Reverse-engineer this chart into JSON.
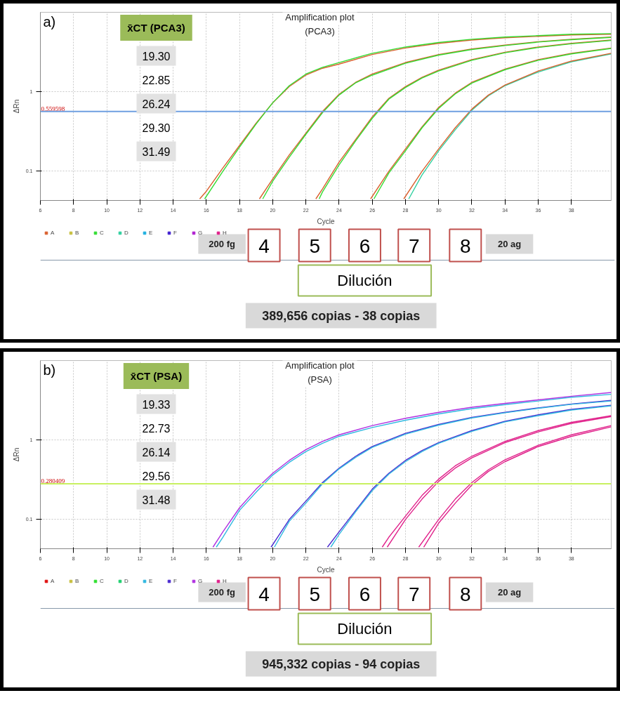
{
  "chart_data": [
    {
      "type": "line",
      "title": "Amplification plot",
      "subtitle": "(PCA3)",
      "xlabel": "Cycle",
      "ylabel": "ΔRn",
      "xlim": [
        6,
        40.4
      ],
      "ylim": [
        0.043,
        9.8
      ],
      "xticks": [
        6,
        8,
        10,
        12,
        14,
        16,
        18,
        20,
        22,
        24,
        26,
        28,
        30,
        32,
        34,
        36,
        38
      ],
      "yticks": [
        0.1,
        1
      ],
      "log": "y",
      "grid": true,
      "legend": "bottom",
      "ref_lines": [
        {
          "axis": "y",
          "value": 0.559598,
          "label": "0.559598",
          "color": "#6f9fe0"
        }
      ],
      "annotations": [
        "a)",
        "x̄CT (PCA3)",
        "19.30",
        "22.85",
        "26.24",
        "29.30",
        "31.49",
        "200 fg",
        "4",
        "5",
        "6",
        "7",
        "8",
        "20 ag",
        "Dilución",
        "389,656 copias - 38 copias"
      ],
      "series": [
        {
          "name": "A",
          "color": "#d9602e",
          "x": [
            15.6,
            16,
            17,
            18,
            19,
            20,
            21,
            22,
            23,
            24,
            26,
            28,
            30,
            32,
            34,
            36,
            38,
            40.4
          ],
          "values": [
            0.045,
            0.056,
            0.11,
            0.21,
            0.4,
            0.72,
            1.15,
            1.6,
            1.95,
            2.2,
            2.9,
            3.5,
            4.0,
            4.4,
            4.7,
            4.9,
            5.1,
            5.2
          ]
        },
        {
          "name": "B",
          "color": "#c8c040"
        },
        {
          "name": "C",
          "color": "#33dd33",
          "x": [
            15.9,
            17,
            18,
            19,
            20,
            21,
            22,
            23,
            24,
            26,
            28,
            30,
            32,
            34,
            36,
            38,
            40.4
          ],
          "values": [
            0.045,
            0.1,
            0.2,
            0.39,
            0.72,
            1.18,
            1.65,
            2.0,
            2.3,
            3.0,
            3.6,
            4.1,
            4.5,
            4.8,
            5.0,
            5.2,
            5.3
          ]
        },
        {
          "name": "D",
          "color": "#30d0a0",
          "x": [
            28.2,
            29,
            30,
            31,
            32,
            33,
            34,
            36,
            38,
            40.4
          ],
          "values": [
            0.045,
            0.09,
            0.18,
            0.33,
            0.58,
            0.88,
            1.18,
            1.75,
            2.35,
            2.95
          ]
        },
        {
          "name": "E",
          "color": "#20b0e0"
        },
        {
          "name": "F",
          "color": "#4020d0"
        },
        {
          "name": "G",
          "color": "#b020d0"
        },
        {
          "name": "H",
          "color": "#e0208a"
        },
        {
          "color": "#d9602e",
          "x": [
            19.2,
            20,
            21,
            22,
            23,
            24,
            25,
            26,
            28,
            30,
            32,
            34,
            36,
            38,
            40.4
          ],
          "values": [
            0.045,
            0.08,
            0.16,
            0.3,
            0.56,
            0.92,
            1.3,
            1.65,
            2.3,
            2.9,
            3.4,
            3.8,
            4.2,
            4.5,
            4.8
          ]
        },
        {
          "color": "#33dd33",
          "x": [
            19.4,
            20,
            21,
            22,
            23,
            24,
            25,
            26,
            28,
            30,
            32,
            34,
            36,
            38,
            40.4
          ],
          "values": [
            0.045,
            0.075,
            0.15,
            0.29,
            0.54,
            0.9,
            1.28,
            1.6,
            2.25,
            2.85,
            3.35,
            3.75,
            4.15,
            4.45,
            4.75
          ]
        },
        {
          "color": "#d9602e",
          "x": [
            22.6,
            23,
            24,
            25,
            26,
            27,
            28,
            29,
            30,
            32,
            34,
            36,
            38,
            40.4
          ],
          "values": [
            0.045,
            0.06,
            0.13,
            0.25,
            0.48,
            0.82,
            1.15,
            1.5,
            1.85,
            2.5,
            3.1,
            3.6,
            4.0,
            4.4
          ]
        },
        {
          "color": "#33dd33",
          "x": [
            22.8,
            23,
            24,
            25,
            26,
            27,
            28,
            29,
            30,
            32,
            34,
            36,
            38,
            40.4
          ],
          "values": [
            0.045,
            0.055,
            0.12,
            0.24,
            0.46,
            0.8,
            1.12,
            1.47,
            1.8,
            2.45,
            3.05,
            3.55,
            3.95,
            4.35
          ]
        },
        {
          "color": "#d9602e",
          "x": [
            25.9,
            27,
            28,
            29,
            30,
            31,
            32,
            34,
            36,
            38,
            40.4
          ],
          "values": [
            0.045,
            0.1,
            0.19,
            0.36,
            0.63,
            0.95,
            1.3,
            1.9,
            2.5,
            3.0,
            3.5
          ]
        },
        {
          "color": "#33dd33",
          "x": [
            26.1,
            27,
            28,
            29,
            30,
            31,
            32,
            34,
            36,
            38,
            40.4
          ],
          "values": [
            0.045,
            0.095,
            0.18,
            0.35,
            0.61,
            0.93,
            1.27,
            1.87,
            2.45,
            2.95,
            3.45
          ]
        },
        {
          "color": "#d9602e",
          "x": [
            27.9,
            29,
            30,
            31,
            32,
            33,
            34,
            36,
            38,
            40.4
          ],
          "values": [
            0.045,
            0.1,
            0.19,
            0.35,
            0.6,
            0.9,
            1.2,
            1.8,
            2.4,
            3.0
          ]
        }
      ]
    },
    {
      "type": "line",
      "title": "Amplification plot",
      "subtitle": "(PSA)",
      "xlabel": "Cycle",
      "ylabel": "ΔRn",
      "xlim": [
        6,
        40.4
      ],
      "ylim": [
        0.043,
        9.8
      ],
      "xticks": [
        6,
        8,
        10,
        12,
        14,
        16,
        18,
        20,
        22,
        24,
        26,
        28,
        30,
        32,
        34,
        36,
        38
      ],
      "yticks": [
        0.1,
        1
      ],
      "log": "y",
      "grid": true,
      "legend": "bottom",
      "ref_lines": [
        {
          "axis": "y",
          "value": 0.280409,
          "label": "0.280409",
          "color": "#c8f060"
        }
      ],
      "annotations": [
        "b)",
        "x̄CT (PSA)",
        "19.33",
        "22.73",
        "26.14",
        "29.56",
        "31.48",
        "200 fg",
        "4",
        "5",
        "6",
        "7",
        "8",
        "20 ag",
        "Dilución",
        "945,332 copias - 94 copias"
      ],
      "series": [
        {
          "name": "A",
          "color": "#e01010"
        },
        {
          "name": "B",
          "color": "#c8c040"
        },
        {
          "name": "C",
          "color": "#30e030"
        },
        {
          "name": "D",
          "color": "#20d070"
        },
        {
          "name": "E",
          "color": "#30b8e0",
          "x": [
            16.6,
            17,
            18,
            19,
            20,
            21,
            22,
            23,
            24,
            26,
            28,
            30,
            32,
            34,
            36,
            38,
            40.4
          ],
          "values": [
            0.045,
            0.06,
            0.13,
            0.22,
            0.36,
            0.52,
            0.71,
            0.9,
            1.1,
            1.42,
            1.75,
            2.1,
            2.45,
            2.75,
            3.05,
            3.4,
            3.7
          ]
        },
        {
          "name": "F",
          "color": "#4a2ad0",
          "x": [
            19.9,
            21,
            22,
            23,
            24,
            25,
            26,
            28,
            30,
            32,
            34,
            36,
            38,
            40.4
          ],
          "values": [
            0.045,
            0.1,
            0.17,
            0.29,
            0.44,
            0.62,
            0.82,
            1.2,
            1.55,
            1.9,
            2.2,
            2.5,
            2.8,
            3.1
          ]
        },
        {
          "name": "G",
          "color": "#b030e0",
          "x": [
            16.4,
            17,
            18,
            19,
            20,
            21,
            22,
            23,
            24,
            26,
            28,
            30,
            32,
            34,
            36,
            38,
            40.4
          ],
          "values": [
            0.045,
            0.07,
            0.14,
            0.24,
            0.38,
            0.55,
            0.75,
            0.95,
            1.15,
            1.5,
            1.85,
            2.2,
            2.55,
            2.85,
            3.15,
            3.5,
            3.9
          ]
        },
        {
          "name": "H",
          "color": "#e0208a",
          "x": [
            26.6,
            27,
            28,
            29,
            30,
            31,
            32,
            34,
            36,
            38,
            40.4
          ],
          "values": [
            0.045,
            0.06,
            0.11,
            0.2,
            0.32,
            0.47,
            0.62,
            0.95,
            1.3,
            1.65,
            2.0
          ]
        },
        {
          "color": "#30b8e0",
          "x": [
            20.1,
            21,
            22,
            23,
            24,
            25,
            26,
            28,
            30,
            32,
            34,
            36,
            38,
            40.4
          ],
          "values": [
            0.045,
            0.095,
            0.16,
            0.28,
            0.43,
            0.6,
            0.8,
            1.17,
            1.52,
            1.87,
            2.17,
            2.47,
            2.77,
            3.05
          ]
        },
        {
          "color": "#4a2ad0",
          "x": [
            23.3,
            24,
            25,
            26,
            27,
            28,
            29,
            30,
            32,
            34,
            36,
            38,
            40.4
          ],
          "values": [
            0.045,
            0.07,
            0.13,
            0.24,
            0.38,
            0.55,
            0.73,
            0.92,
            1.3,
            1.7,
            2.05,
            2.4,
            2.7
          ]
        },
        {
          "color": "#30b8e0",
          "x": [
            23.5,
            24,
            25,
            26,
            27,
            28,
            29,
            30,
            32,
            34,
            36,
            38,
            40.4
          ],
          "values": [
            0.045,
            0.065,
            0.125,
            0.23,
            0.37,
            0.53,
            0.71,
            0.9,
            1.27,
            1.67,
            2.0,
            2.35,
            2.65
          ]
        },
        {
          "color": "#e0208a",
          "x": [
            26.9,
            28,
            29,
            30,
            31,
            32,
            34,
            36,
            38,
            40.4
          ],
          "values": [
            0.045,
            0.1,
            0.18,
            0.3,
            0.44,
            0.59,
            0.92,
            1.25,
            1.6,
            1.95
          ]
        },
        {
          "color": "#e0208a",
          "x": [
            28.8,
            30,
            31,
            32,
            33,
            34,
            36,
            38,
            40.4
          ],
          "values": [
            0.045,
            0.1,
            0.18,
            0.29,
            0.42,
            0.56,
            0.85,
            1.15,
            1.5
          ]
        },
        {
          "color": "#e0208a",
          "x": [
            29.1,
            30,
            31,
            32,
            33,
            34,
            36,
            38,
            40.4
          ],
          "values": [
            0.045,
            0.09,
            0.16,
            0.27,
            0.4,
            0.53,
            0.82,
            1.1,
            1.45
          ]
        }
      ]
    }
  ]
}
